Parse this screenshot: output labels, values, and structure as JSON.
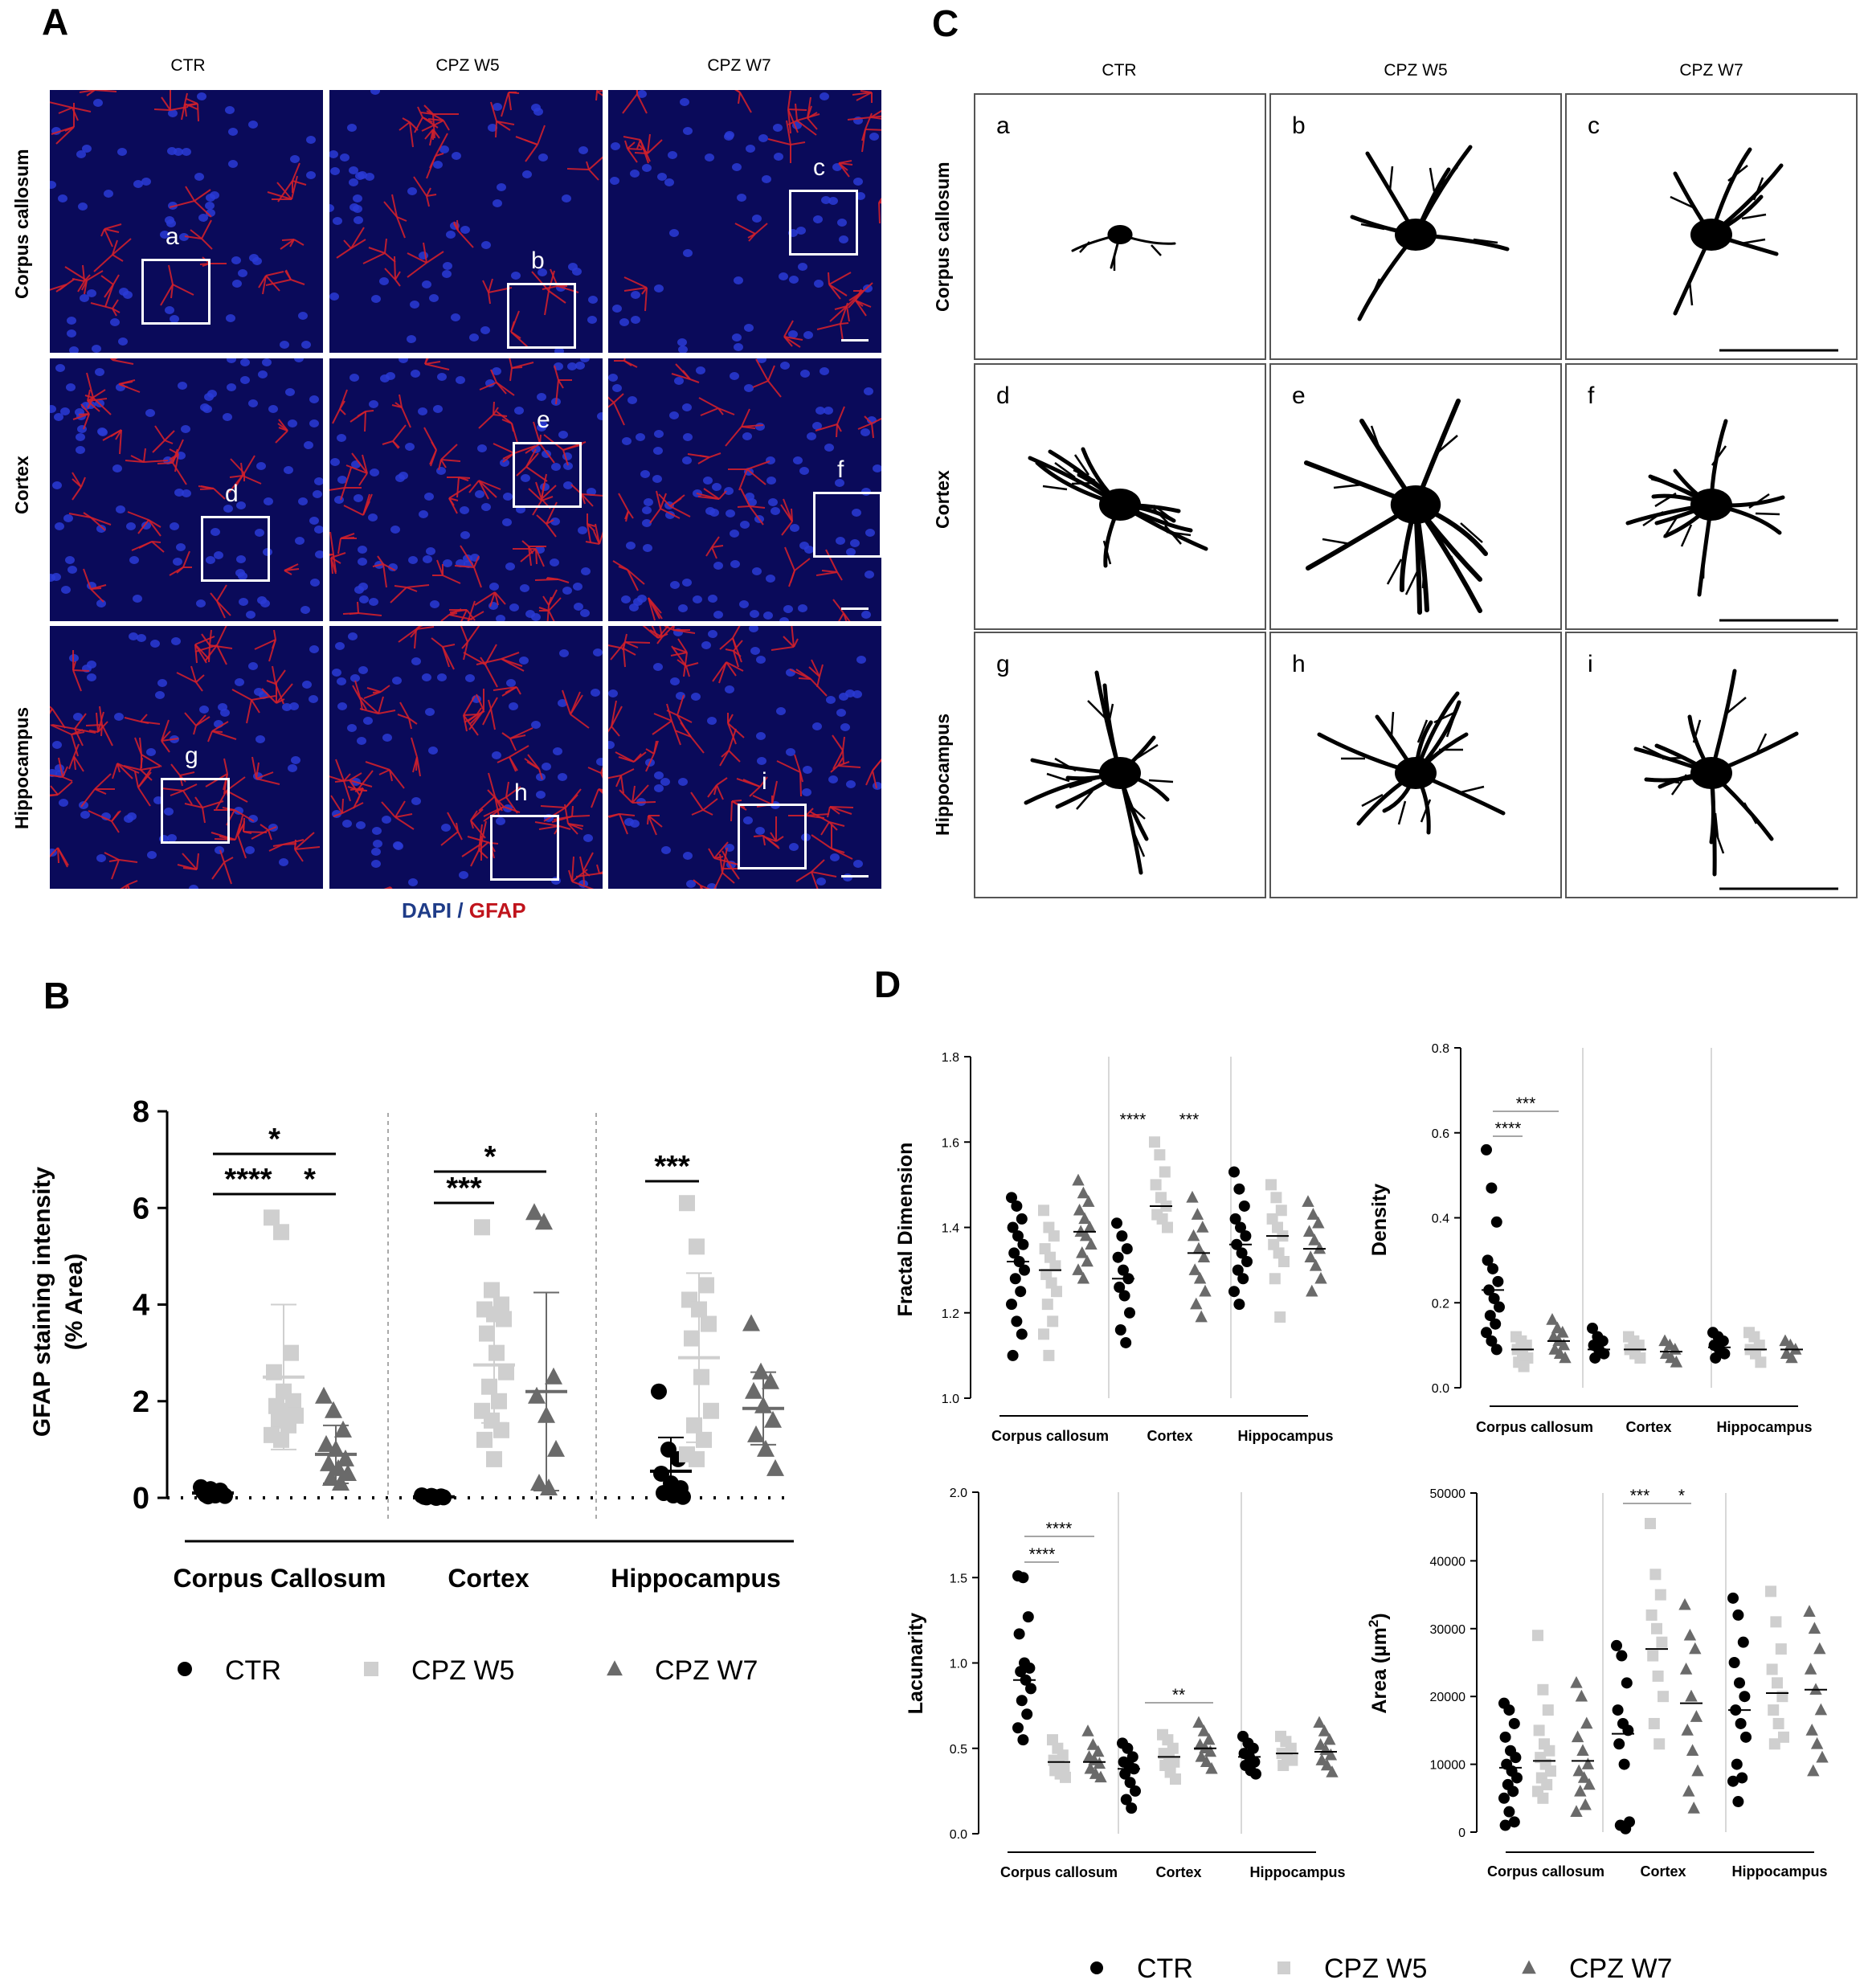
{
  "panelA": {
    "letter": "A",
    "columns": [
      "CTR",
      "CPZ W5",
      "CPZ W7"
    ],
    "rows": [
      "Corpus callosum",
      "Cortex",
      "Hippocampus"
    ],
    "inset_letters": [
      "a",
      "b",
      "c",
      "d",
      "e",
      "f",
      "g",
      "h",
      "i"
    ],
    "legend": {
      "dapi": "DAPI",
      "sep": " / ",
      "gfap": "GFAP"
    },
    "colors": {
      "dapi": "#1f3c88",
      "gfap": "#c0141c"
    }
  },
  "panelC": {
    "letter": "C",
    "columns": [
      "CTR",
      "CPZ W5",
      "CPZ W7"
    ],
    "rows": [
      "Corpus callosum",
      "Cortex",
      "Hippocampus"
    ],
    "cell_letters": [
      "a",
      "b",
      "c",
      "d",
      "e",
      "f",
      "g",
      "h",
      "i"
    ]
  },
  "panelB": {
    "letter": "B"
  },
  "panelD": {
    "letter": "D"
  },
  "legend_groups": [
    "CTR",
    "CPZ W5",
    "CPZ W7"
  ],
  "colors": {
    "ctr": "#000000",
    "w5": "#cfcfcf",
    "w7": "#6a6a6a"
  },
  "chart_data": [
    {
      "id": "B",
      "type": "scatter",
      "ylabel": "GFAP staining intensity",
      "ylabel2": "(% Area)",
      "ylim": [
        0,
        8
      ],
      "yticks": [
        "0",
        "2",
        "4",
        "6",
        "8"
      ],
      "regions": [
        "Corpus Callosum",
        "Cortex",
        "Hippocampus"
      ],
      "series": [
        {
          "name": "CTR",
          "region": "Corpus Callosum",
          "mean": 0.1,
          "sd": 0.05,
          "values": [
            0.22,
            0.18,
            0.15,
            0.12,
            0.1,
            0.08,
            0.06,
            0.05,
            0.04,
            0.03
          ]
        },
        {
          "name": "CPZ W5",
          "region": "Corpus Callosum",
          "mean": 2.5,
          "sd": 1.5,
          "values": [
            5.8,
            5.5,
            3.0,
            2.6,
            2.2,
            2.0,
            1.9,
            1.8,
            1.7,
            1.6,
            1.5,
            1.3,
            1.2
          ]
        },
        {
          "name": "CPZ W7",
          "region": "Corpus Callosum",
          "mean": 0.9,
          "sd": 0.6,
          "values": [
            2.1,
            1.8,
            1.4,
            1.1,
            1.0,
            0.8,
            0.7,
            0.6,
            0.5,
            0.4,
            0.3
          ]
        },
        {
          "name": "CTR",
          "region": "Cortex",
          "mean": 0.02,
          "sd": 0.02,
          "values": [
            0.05,
            0.04,
            0.03,
            0.02,
            0.02,
            0.01,
            0.01,
            0.0
          ]
        },
        {
          "name": "CPZ W5",
          "region": "Cortex",
          "mean": 2.75,
          "sd": 1.2,
          "values": [
            5.6,
            4.3,
            4.0,
            3.9,
            3.8,
            3.7,
            3.4,
            3.0,
            2.6,
            2.3,
            2.0,
            1.8,
            1.6,
            1.4,
            1.2,
            0.8
          ]
        },
        {
          "name": "CPZ W7",
          "region": "Cortex",
          "mean": 2.2,
          "sd": 2.05,
          "values": [
            5.9,
            5.7,
            2.5,
            2.1,
            1.7,
            1.0,
            0.3,
            0.2
          ]
        },
        {
          "name": "CTR",
          "region": "Hippocampus",
          "mean": 0.55,
          "sd": 0.7,
          "values": [
            2.2,
            1.0,
            0.8,
            0.5,
            0.3,
            0.2,
            0.1,
            0.05,
            0.02
          ]
        },
        {
          "name": "CPZ W5",
          "region": "Hippocampus",
          "mean": 2.9,
          "sd": 1.75,
          "values": [
            6.1,
            5.2,
            4.4,
            4.1,
            3.9,
            3.6,
            3.3,
            2.5,
            1.8,
            1.5,
            1.2,
            0.9,
            0.8
          ]
        },
        {
          "name": "CPZ W7",
          "region": "Hippocampus",
          "mean": 1.85,
          "sd": 0.75,
          "values": [
            3.6,
            2.6,
            2.4,
            2.2,
            1.9,
            1.6,
            1.3,
            1.0,
            0.6
          ]
        }
      ],
      "annotations": [
        "*",
        "****",
        "*",
        "*",
        "***",
        "***"
      ]
    },
    {
      "id": "D-fractal",
      "type": "scatter",
      "ylabel": "Fractal Dimension",
      "ylim": [
        1.0,
        1.8
      ],
      "yticks": [
        "1.0",
        "1.2",
        "1.4",
        "1.6",
        "1.8"
      ],
      "regions": [
        "Corpus callosum",
        "Cortex",
        "Hippocampus"
      ],
      "means": [
        [
          1.32,
          1.3,
          1.39
        ],
        [
          1.28,
          1.45,
          1.34
        ],
        [
          1.36,
          1.38,
          1.35
        ]
      ],
      "values": [
        [
          [
            1.47,
            1.45,
            1.42,
            1.4,
            1.38,
            1.36,
            1.34,
            1.32,
            1.3,
            1.28,
            1.25,
            1.22,
            1.18,
            1.15,
            1.1
          ],
          [
            1.44,
            1.4,
            1.38,
            1.35,
            1.33,
            1.31,
            1.29,
            1.27,
            1.25,
            1.22,
            1.18,
            1.15,
            1.1
          ],
          [
            1.51,
            1.48,
            1.46,
            1.44,
            1.42,
            1.4,
            1.39,
            1.38,
            1.36,
            1.34,
            1.32,
            1.3,
            1.28
          ]
        ],
        [
          [
            1.41,
            1.38,
            1.35,
            1.33,
            1.3,
            1.28,
            1.26,
            1.24,
            1.2,
            1.16,
            1.13
          ],
          [
            1.6,
            1.57,
            1.53,
            1.5,
            1.47,
            1.45,
            1.43,
            1.42,
            1.4
          ],
          [
            1.47,
            1.43,
            1.4,
            1.38,
            1.35,
            1.33,
            1.3,
            1.28,
            1.25,
            1.22,
            1.19
          ]
        ],
        [
          [
            1.53,
            1.49,
            1.45,
            1.42,
            1.4,
            1.38,
            1.36,
            1.34,
            1.32,
            1.3,
            1.28,
            1.25,
            1.22
          ],
          [
            1.5,
            1.47,
            1.44,
            1.42,
            1.4,
            1.38,
            1.36,
            1.34,
            1.32,
            1.28,
            1.19
          ],
          [
            1.46,
            1.43,
            1.41,
            1.39,
            1.37,
            1.35,
            1.33,
            1.31,
            1.28,
            1.25
          ]
        ]
      ],
      "annotations": [
        "****",
        "***"
      ]
    },
    {
      "id": "D-density",
      "type": "scatter",
      "ylabel": "Density",
      "ylim": [
        0.0,
        0.8
      ],
      "yticks": [
        "0.0",
        "0.2",
        "0.4",
        "0.6",
        "0.8"
      ],
      "regions": [
        "Corpus callosum",
        "Cortex",
        "Hippocampus"
      ],
      "means": [
        [
          0.23,
          0.09,
          0.11
        ],
        [
          0.09,
          0.09,
          0.085
        ],
        [
          0.095,
          0.09,
          0.09
        ]
      ],
      "values": [
        [
          [
            0.56,
            0.47,
            0.39,
            0.3,
            0.28,
            0.25,
            0.23,
            0.21,
            0.19,
            0.17,
            0.15,
            0.13,
            0.11,
            0.09
          ],
          [
            0.12,
            0.11,
            0.1,
            0.09,
            0.08,
            0.07,
            0.06,
            0.05
          ],
          [
            0.16,
            0.14,
            0.13,
            0.12,
            0.11,
            0.1,
            0.09,
            0.08,
            0.07
          ]
        ],
        [
          [
            0.14,
            0.12,
            0.11,
            0.1,
            0.09,
            0.08,
            0.07
          ],
          [
            0.12,
            0.11,
            0.1,
            0.09,
            0.08,
            0.07
          ],
          [
            0.11,
            0.1,
            0.09,
            0.08,
            0.07,
            0.06
          ]
        ],
        [
          [
            0.13,
            0.12,
            0.11,
            0.1,
            0.09,
            0.08,
            0.07
          ],
          [
            0.13,
            0.12,
            0.1,
            0.09,
            0.08,
            0.06
          ],
          [
            0.11,
            0.1,
            0.09,
            0.08,
            0.07
          ]
        ]
      ],
      "annotations": [
        "***",
        "****"
      ]
    },
    {
      "id": "D-lacunarity",
      "type": "scatter",
      "ylabel": "Lacunarity",
      "ylim": [
        0.0,
        2.0
      ],
      "yticks": [
        "0.0",
        "0.5",
        "1.0",
        "1.5",
        "2.0"
      ],
      "regions": [
        "Corpus callosum",
        "Cortex",
        "Hippocampus"
      ],
      "means": [
        [
          0.9,
          0.42,
          0.42
        ],
        [
          0.38,
          0.45,
          0.5
        ],
        [
          0.45,
          0.47,
          0.48
        ]
      ],
      "values": [
        [
          [
            1.51,
            1.5,
            1.27,
            1.17,
            1.0,
            0.97,
            0.95,
            0.9,
            0.85,
            0.78,
            0.7,
            0.62,
            0.55
          ],
          [
            0.55,
            0.5,
            0.46,
            0.43,
            0.41,
            0.39,
            0.37,
            0.35,
            0.33
          ],
          [
            0.6,
            0.52,
            0.48,
            0.45,
            0.43,
            0.41,
            0.38,
            0.35,
            0.33
          ]
        ],
        [
          [
            0.53,
            0.5,
            0.45,
            0.42,
            0.4,
            0.38,
            0.35,
            0.3,
            0.25,
            0.2,
            0.15
          ],
          [
            0.58,
            0.55,
            0.5,
            0.47,
            0.45,
            0.42,
            0.4,
            0.36,
            0.32
          ],
          [
            0.65,
            0.6,
            0.55,
            0.52,
            0.5,
            0.48,
            0.45,
            0.42,
            0.38
          ]
        ],
        [
          [
            0.57,
            0.53,
            0.5,
            0.47,
            0.45,
            0.42,
            0.4,
            0.37,
            0.35
          ],
          [
            0.57,
            0.54,
            0.5,
            0.47,
            0.45,
            0.43,
            0.4
          ],
          [
            0.65,
            0.6,
            0.55,
            0.52,
            0.49,
            0.46,
            0.43,
            0.4,
            0.36
          ]
        ]
      ],
      "annotations": [
        "****",
        "****",
        "**"
      ]
    },
    {
      "id": "D-area",
      "type": "scatter",
      "ylabel": "Area (µm",
      "ylabel_sup": "2",
      "ylabel_end": ")",
      "ylim": [
        0,
        50000
      ],
      "yticks": [
        "0",
        "10000",
        "20000",
        "30000",
        "40000",
        "50000"
      ],
      "regions": [
        "Corpus callosum",
        "Cortex",
        "Hippocampus"
      ],
      "means": [
        [
          9500,
          10500,
          10500
        ],
        [
          14500,
          27000,
          19000
        ],
        [
          18000,
          20500,
          21000
        ]
      ],
      "values": [
        [
          [
            19000,
            18000,
            16000,
            14000,
            12000,
            11000,
            10000,
            9000,
            8000,
            7000,
            6000,
            5000,
            3000,
            1500,
            1000
          ],
          [
            29000,
            21000,
            18000,
            15000,
            13000,
            12000,
            11000,
            10000,
            9000,
            8000,
            7000,
            6000,
            5000
          ],
          [
            22000,
            20000,
            16000,
            14000,
            12000,
            10000,
            9000,
            8000,
            7000,
            6000,
            4000,
            3000
          ]
        ],
        [
          [
            27500,
            26000,
            22000,
            18000,
            16000,
            15000,
            13000,
            10000,
            1500,
            1000,
            500
          ],
          [
            45500,
            38000,
            35000,
            32000,
            30000,
            28000,
            26000,
            23000,
            20000,
            16000,
            13000
          ],
          [
            33500,
            29000,
            27000,
            24000,
            20000,
            17000,
            15000,
            12000,
            9000,
            6000,
            3500
          ]
        ],
        [
          [
            34500,
            32000,
            28000,
            25000,
            22000,
            20000,
            18000,
            16000,
            14000,
            10000,
            8000,
            7500,
            4500
          ],
          [
            35500,
            31000,
            27000,
            24000,
            22000,
            20000,
            18000,
            16000,
            14000,
            13000
          ],
          [
            32500,
            30000,
            27000,
            24000,
            21000,
            18000,
            15000,
            13000,
            11000,
            9000
          ]
        ]
      ],
      "annotations": [
        "***",
        "*"
      ]
    }
  ]
}
